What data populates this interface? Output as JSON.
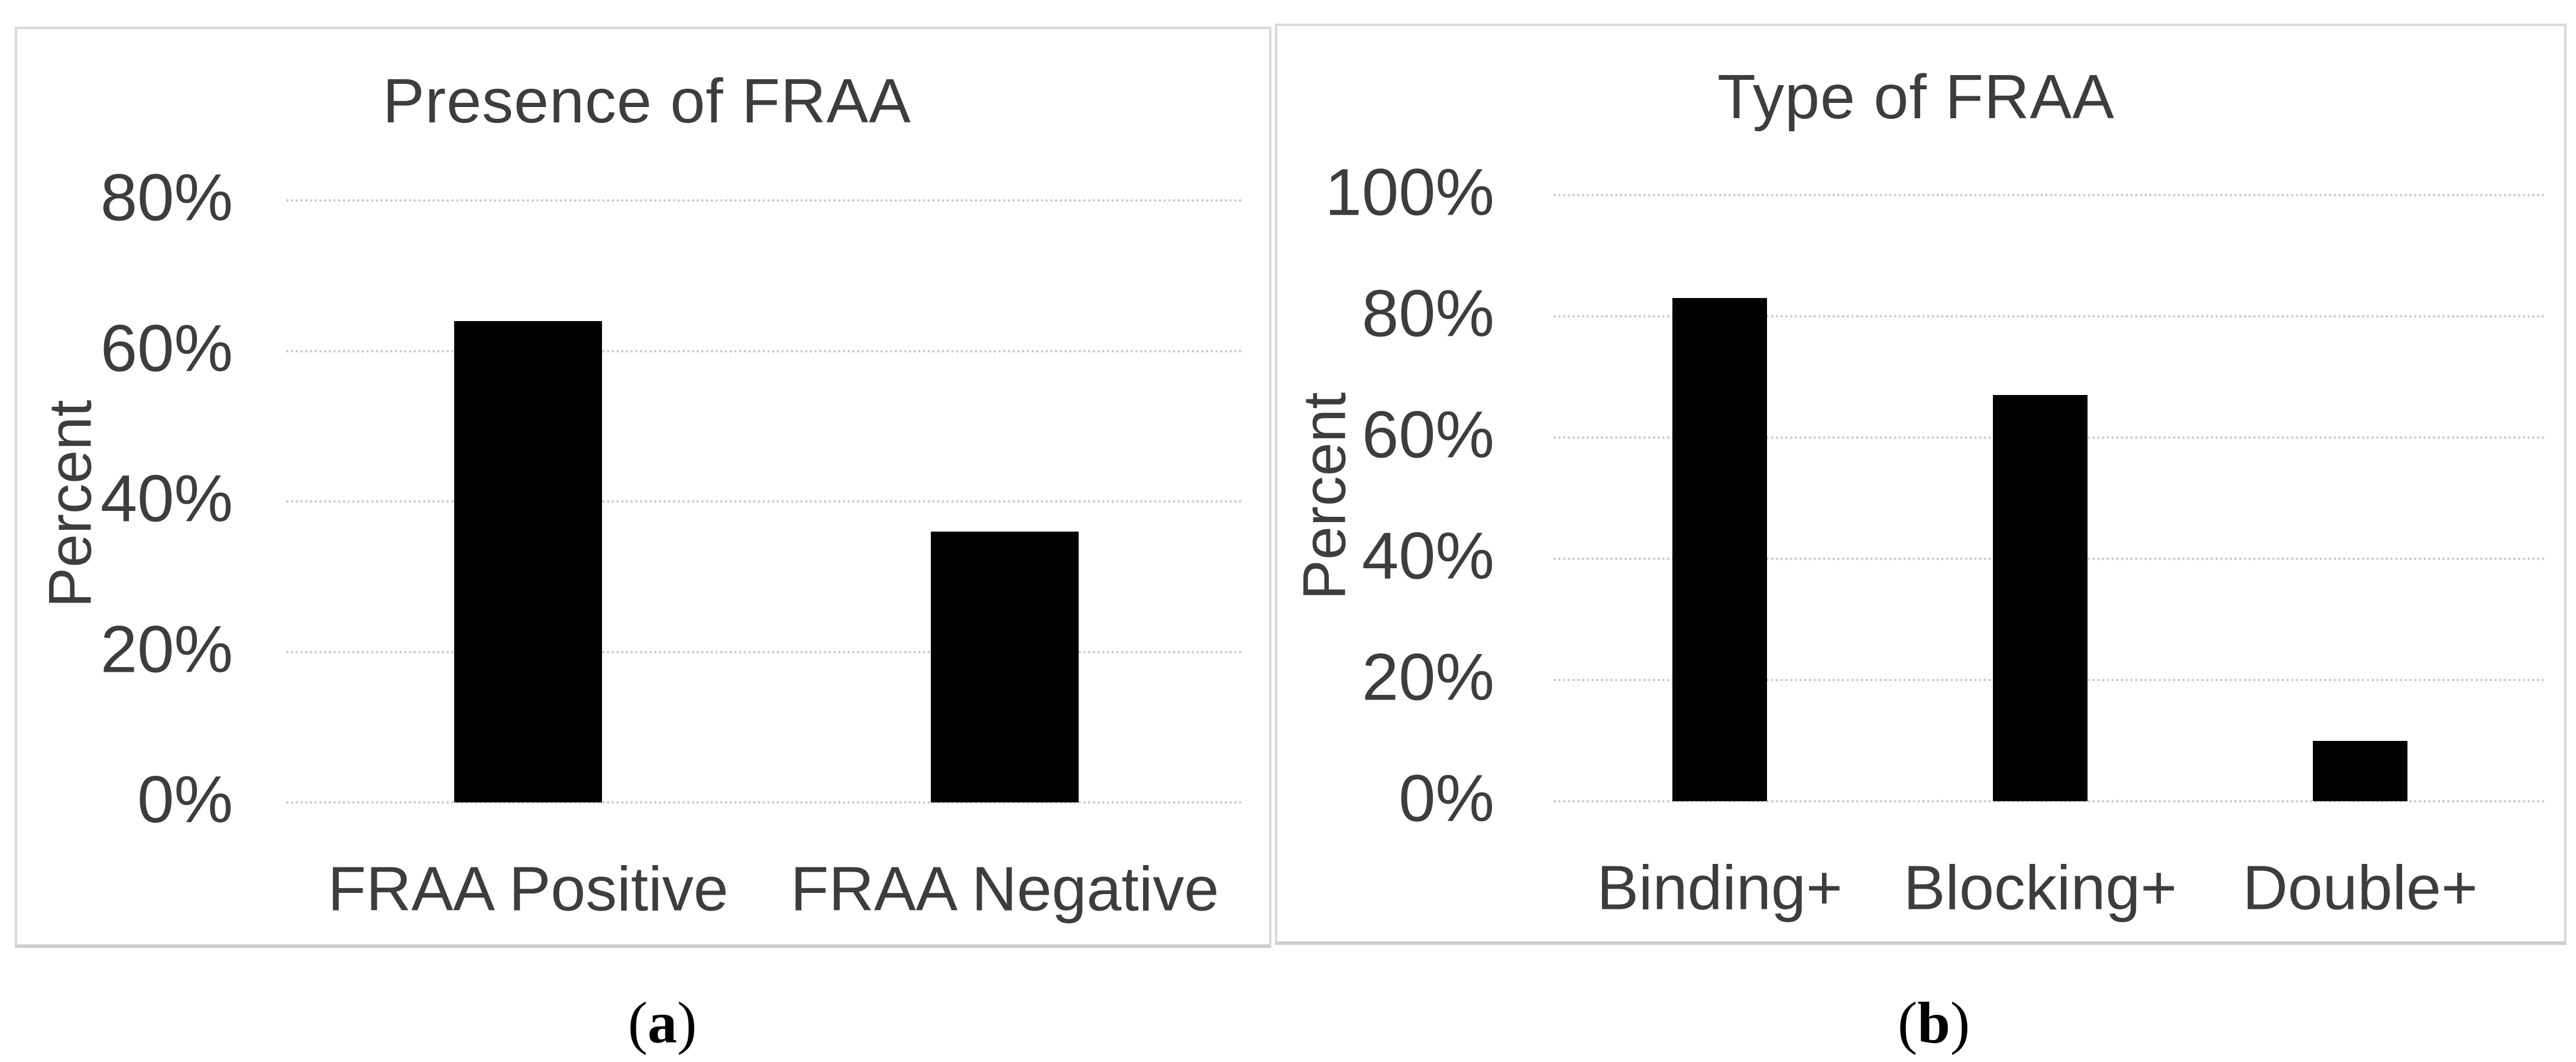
{
  "figure": {
    "panels": [
      {
        "caption": {
          "open": "(",
          "letter": "a",
          "close": ")"
        }
      },
      {
        "caption": {
          "open": "(",
          "letter": "b",
          "close": ")"
        }
      }
    ]
  },
  "colors": {
    "bar": "#000000",
    "text": "#3d3d3d",
    "gridline": "#c9c9c9",
    "panel_border": "#d9d9d9",
    "background": "#ffffff"
  },
  "chart_data": [
    {
      "type": "bar",
      "title": "Presence of FRAA",
      "xlabel": "",
      "ylabel": "Percent",
      "categories": [
        "FRAA Positive",
        "FRAA Negative"
      ],
      "values": [
        64,
        36
      ],
      "unit": "%",
      "ylim": [
        0,
        80
      ],
      "ytick_step": 20,
      "yticks": [
        {
          "value": 0,
          "label": "0%"
        },
        {
          "value": 20,
          "label": "20%"
        },
        {
          "value": 40,
          "label": "40%"
        },
        {
          "value": 60,
          "label": "60%"
        },
        {
          "value": 80,
          "label": "80%"
        }
      ],
      "grid": true,
      "legend": "none"
    },
    {
      "type": "bar",
      "title": "Type of FRAA",
      "xlabel": "",
      "ylabel": "Percent",
      "categories": [
        "Binding+",
        "Blocking+",
        "Double+"
      ],
      "values": [
        83,
        67,
        10
      ],
      "unit": "%",
      "ylim": [
        0,
        100
      ],
      "ytick_step": 20,
      "yticks": [
        {
          "value": 0,
          "label": "0%"
        },
        {
          "value": 20,
          "label": "20%"
        },
        {
          "value": 40,
          "label": "40%"
        },
        {
          "value": 60,
          "label": "60%"
        },
        {
          "value": 80,
          "label": "80%"
        },
        {
          "value": 100,
          "label": "100%"
        }
      ],
      "grid": true,
      "legend": "none"
    }
  ]
}
